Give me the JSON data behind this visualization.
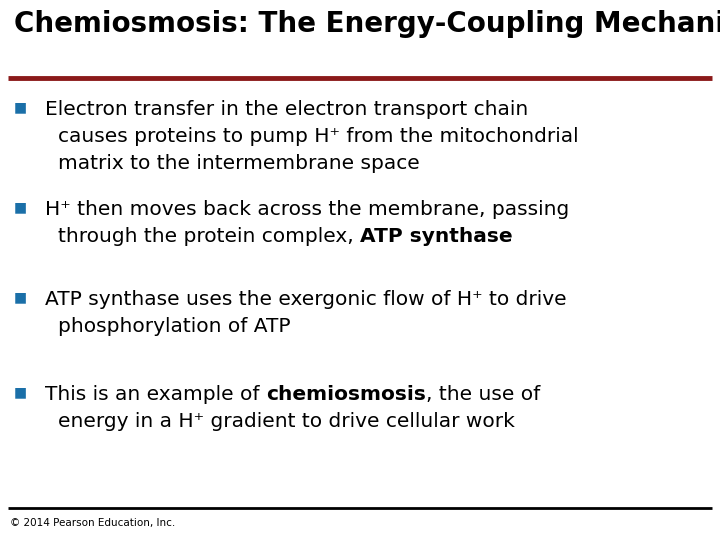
{
  "title": "Chemiosmosis: The Energy-Coupling Mechanism",
  "title_color": "#000000",
  "title_fontsize": 20,
  "title_font": "sans-serif",
  "separator_color_top": "#8B1A1A",
  "separator_color_bottom": "#000000",
  "bullet_color": "#1a6fa8",
  "background_color": "#ffffff",
  "footer_text": "© 2014 Pearson Education, Inc.",
  "footer_fontsize": 7.5,
  "bullet_fontsize": 14.5,
  "bullet_fontsize_small": 13,
  "bullets": [
    {
      "line1": "Electron transfer in the electron transport chain",
      "line2": "causes proteins to pump H⁺ from the mitochondrial",
      "line3": "matrix to the intermembrane space",
      "line4": null
    },
    {
      "line1": "H⁺ then moves back across the membrane, passing",
      "line2_normal_pre": "through the protein complex, ",
      "line2_bold": "ATP synthase",
      "line2_normal_post": "",
      "line3": null,
      "line4": null
    },
    {
      "line1": "ATP synthase uses the exergonic flow of H⁺ to drive",
      "line2": "phosphorylation of ATP",
      "line3": null,
      "line4": null
    },
    {
      "line1_normal_pre": "This is an example of ",
      "line1_bold": "chemiosmosis",
      "line1_normal_post": ", the use of",
      "line2": "energy in a H⁺ gradient to drive cellular work",
      "line3": null,
      "line4": null
    }
  ]
}
